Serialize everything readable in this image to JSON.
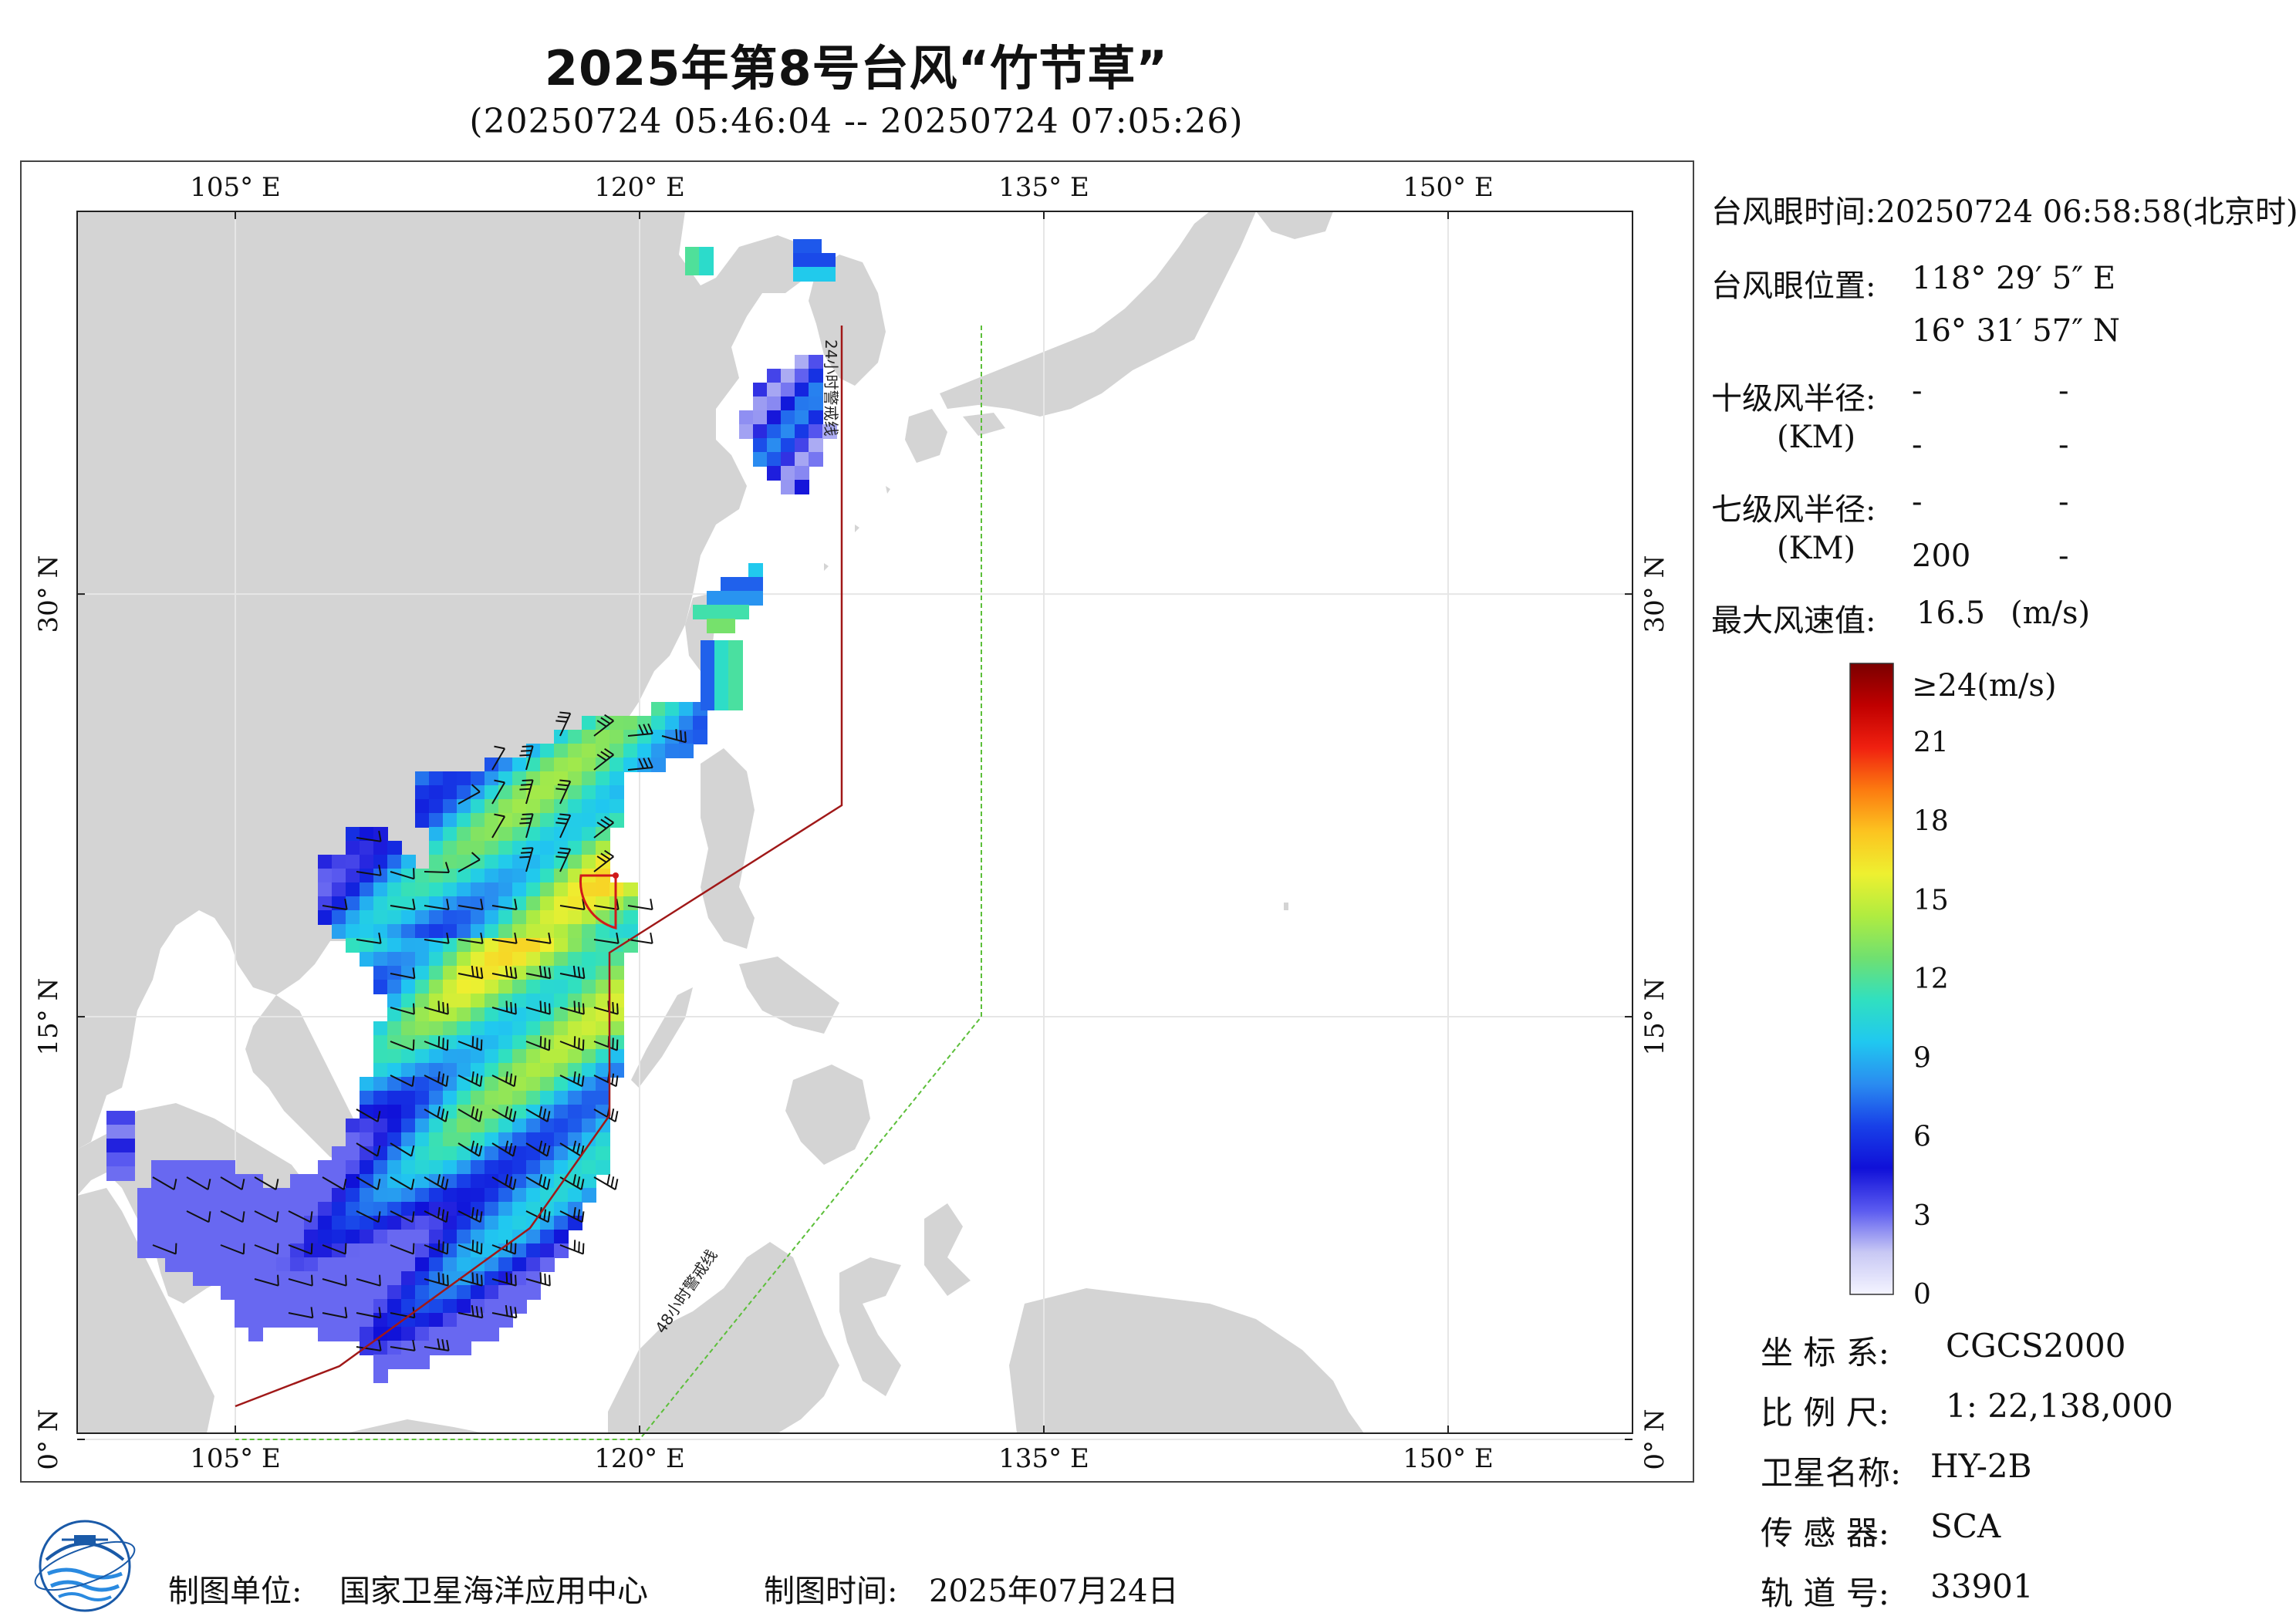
{
  "header": {
    "title": "2025年第8号台风“竹节草”",
    "subtitle": "(20250724 05:46:04 -- 20250724 07:05:26)"
  },
  "map": {
    "lon_labels": [
      "105° E",
      "120° E",
      "135° E",
      "150° E"
    ],
    "lon_values": [
      105,
      120,
      135,
      150
    ],
    "lat_labels": [
      "0° N",
      "15° N",
      "30° N"
    ],
    "lat_values": [
      0,
      15,
      30
    ],
    "warning_24h_label": "24小时警戒线",
    "warning_48h_label": "48小时警戒线",
    "colors": {
      "land": "#d4d4d4",
      "sea": "#ffffff",
      "warning_24h": "#a01818",
      "warning_48h": "#5cbf3a",
      "eye_quadrant": "#d01a1a",
      "barb": "#111111"
    }
  },
  "info": {
    "eye_time_label": "台风眼时间:",
    "eye_time_value": "20250724 06:58:58(北京时)",
    "eye_pos_label": "台风眼位置:",
    "eye_lon": "118° 29′ 5″ E",
    "eye_lat": "16° 31′ 57″ N",
    "r10_label": "十级风半径:",
    "r10_unit": "(KM)",
    "r10_values": [
      "-",
      "-",
      "-",
      "-"
    ],
    "r7_label": "七级风半径:",
    "r7_unit": "(KM)",
    "r7_values": [
      "-",
      "-",
      "200",
      "-"
    ],
    "max_wind_label": "最大风速值:",
    "max_wind_value": "16.5",
    "max_wind_unit": "(m/s)"
  },
  "colorbar": {
    "top_label": "≥24(m/s)",
    "tick_labels": [
      "21",
      "18",
      "15",
      "12",
      "9",
      "6",
      "3",
      "0"
    ],
    "tick_values": [
      21,
      18,
      15,
      12,
      9,
      6,
      3,
      0
    ],
    "min": 0,
    "max": 24,
    "stops": [
      "#f4f4ff",
      "#c8c8f4",
      "#5a5af0",
      "#1010d8",
      "#1840e8",
      "#2a8cf0",
      "#20c8f0",
      "#30e0c0",
      "#70e070",
      "#b0ec40",
      "#eef030",
      "#fcc420",
      "#fc7a10",
      "#f02010",
      "#c00000",
      "#7a0000"
    ]
  },
  "metadata": {
    "crs_label": "坐 标 系:",
    "crs_value": "CGCS2000",
    "scale_label": "比 例 尺:",
    "scale_value": "1: 22,138,000",
    "satellite_label": "卫星名称:",
    "satellite_value": "HY-2B",
    "sensor_label": "传 感 器:",
    "sensor_value": "SCA",
    "orbit_label": "轨 道 号:",
    "orbit_value": "33901"
  },
  "footer": {
    "producer_label": "制图单位:",
    "producer_value": "国家卫星海洋应用中心",
    "date_label": "制图时间:",
    "date_value": "2025年07月24日"
  }
}
